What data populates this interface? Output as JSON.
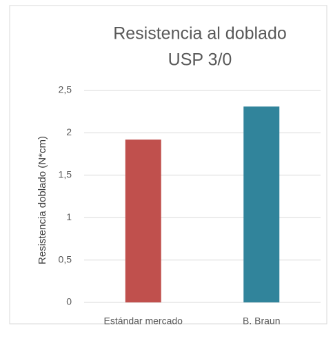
{
  "chart_data": {
    "type": "bar",
    "title": [
      "Resistencia al doblado",
      "USP 3/0"
    ],
    "y_label": "Resistencia doblado (N*cm)",
    "categories": [
      "Estándar mercado",
      "B. Braun"
    ],
    "values": [
      1.92,
      2.31
    ],
    "colors": [
      "#c0504d",
      "#31849b"
    ],
    "ylim": [
      0,
      2.5
    ],
    "yticks": [
      0,
      {
        "value": 0.5,
        "label": "0,5"
      },
      1,
      {
        "value": 1.5,
        "label": "1,5"
      },
      2,
      {
        "value": 2.5,
        "label": "2,5"
      }
    ],
    "grid": true
  }
}
